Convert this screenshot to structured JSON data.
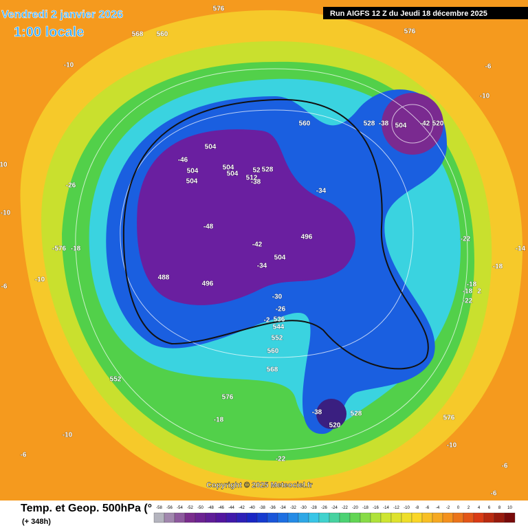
{
  "header": {
    "date": "Vendredi 2 janvier 2026",
    "time": "1:00 locale",
    "run": "Run AIGFS 12 Z du Jeudi 18 décembre 2025"
  },
  "map": {
    "labels": [
      "576",
      "568",
      "560",
      "-10",
      "576",
      "-6",
      "-10",
      "560",
      "528",
      "-38",
      "504",
      "-42",
      "520",
      "504",
      "-46",
      "504",
      "504",
      "504",
      "528",
      "52",
      "512",
      "-38",
      "504",
      "-26",
      "-34",
      "10",
      "-10",
      "-48",
      "496",
      "-42",
      "-22",
      "-576",
      "-18",
      "504",
      "-34",
      "-14",
      "-18",
      "488",
      "496",
      "-10",
      "-6",
      "-18",
      "-18",
      "2",
      "-22",
      "-30",
      "-26",
      "-2",
      "536",
      "544",
      "552",
      "560",
      "568",
      "552",
      "576",
      "-18",
      "-38",
      "528",
      "520",
      "576",
      "-10",
      "-10",
      "-22",
      "-6",
      "-6",
      "-6"
    ],
    "copyright": "Copyright © 2025 Meteociel.fr"
  },
  "footer": {
    "title": "Temp. et Geop. 500hPa (°",
    "lead": "(+ 348h)",
    "scale": [
      -58,
      -56,
      -54,
      -52,
      -50,
      -48,
      -46,
      -44,
      -42,
      -40,
      -38,
      -36,
      -34,
      -32,
      -30,
      -28,
      -26,
      -24,
      -22,
      -20,
      -18,
      -16,
      -14,
      -12,
      -10,
      -8,
      -6,
      -4,
      -2,
      0,
      2,
      4,
      6,
      8,
      10
    ]
  }
}
